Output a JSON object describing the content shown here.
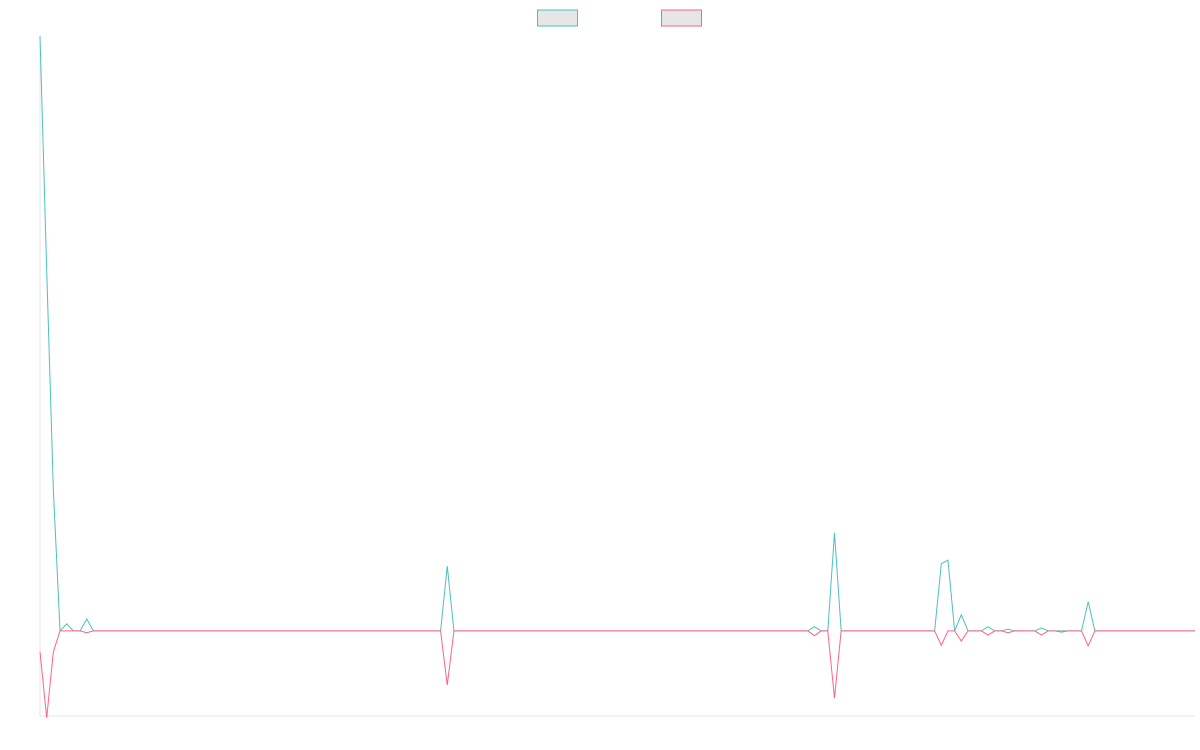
{
  "chart_data": {
    "type": "line",
    "ylim": [
      -14.3,
      100
    ],
    "legend": "top",
    "grid": false,
    "series": [
      {
        "color": "#4bc0c0",
        "values": [
          100,
          60.7,
          23.7,
          0,
          1.2,
          0,
          0,
          2,
          0,
          0,
          0,
          0,
          0,
          0,
          0,
          0,
          0,
          0,
          0,
          0,
          0,
          0,
          0,
          0,
          0,
          0,
          0,
          0,
          0,
          0,
          0,
          0,
          0,
          0,
          0,
          0,
          0,
          0,
          0,
          0,
          0,
          0,
          0,
          0,
          0,
          0,
          0,
          0,
          0,
          0,
          0,
          0,
          0,
          0,
          0,
          0,
          0,
          0,
          0,
          0,
          0,
          10.9,
          0,
          0,
          0,
          0,
          0,
          0,
          0,
          0,
          0,
          0,
          0,
          0,
          0,
          0,
          0,
          0,
          0,
          0,
          0,
          0,
          0,
          0,
          0,
          0,
          0,
          0,
          0,
          0,
          0,
          0,
          0,
          0,
          0,
          0,
          0,
          0,
          0,
          0,
          0,
          0,
          0,
          0,
          0,
          0,
          0,
          0,
          0,
          0,
          0,
          0,
          0,
          0,
          0,
          0,
          0.7,
          0,
          0,
          16.5,
          0,
          0,
          0,
          0,
          0,
          0,
          0,
          0,
          0,
          0,
          0,
          0,
          0,
          0,
          0,
          11.3,
          11.9,
          0,
          2.7,
          0,
          0,
          0,
          0.7,
          0,
          0,
          0.3,
          0,
          0,
          0,
          0,
          0.5,
          0,
          0,
          0,
          0,
          0,
          0,
          4.9,
          0,
          0,
          0,
          0,
          0,
          0,
          0,
          0,
          0,
          0,
          0,
          0,
          0,
          0,
          0,
          0
        ]
      },
      {
        "color": "#ff6384",
        "values": [
          -3.5,
          -14.6,
          -3.5,
          0,
          0,
          0,
          0,
          -0.3,
          0,
          0,
          0,
          0,
          0,
          0,
          0,
          0,
          0,
          0,
          0,
          0,
          0,
          0,
          0,
          0,
          0,
          0,
          0,
          0,
          0,
          0,
          0,
          0,
          0,
          0,
          0,
          0,
          0,
          0,
          0,
          0,
          0,
          0,
          0,
          0,
          0,
          0,
          0,
          0,
          0,
          0,
          0,
          0,
          0,
          0,
          0,
          0,
          0,
          0,
          0,
          0,
          0,
          -9.1,
          0,
          0,
          0,
          0,
          0,
          0,
          0,
          0,
          0,
          0,
          0,
          0,
          0,
          0,
          0,
          0,
          0,
          0,
          0,
          0,
          0,
          0,
          0,
          0,
          0,
          0,
          0,
          0,
          0,
          0,
          0,
          0,
          0,
          0,
          0,
          0,
          0,
          0,
          0,
          0,
          0,
          0,
          0,
          0,
          0,
          0,
          0,
          0,
          0,
          0,
          0,
          0,
          0,
          0,
          -0.8,
          0,
          0,
          -11.3,
          0,
          0,
          0,
          0,
          0,
          0,
          0,
          0,
          0,
          0,
          0,
          0,
          0,
          0,
          0,
          -2.4,
          0,
          0,
          -1.7,
          0,
          0,
          0,
          -0.7,
          0,
          0,
          -0.3,
          0,
          0,
          0,
          0,
          -0.7,
          0,
          0,
          -0.2,
          0,
          0,
          0,
          -2.5,
          0,
          0,
          0,
          0,
          0,
          0,
          0,
          0,
          0,
          0,
          0,
          0,
          0,
          0,
          0,
          0
        ]
      }
    ]
  }
}
